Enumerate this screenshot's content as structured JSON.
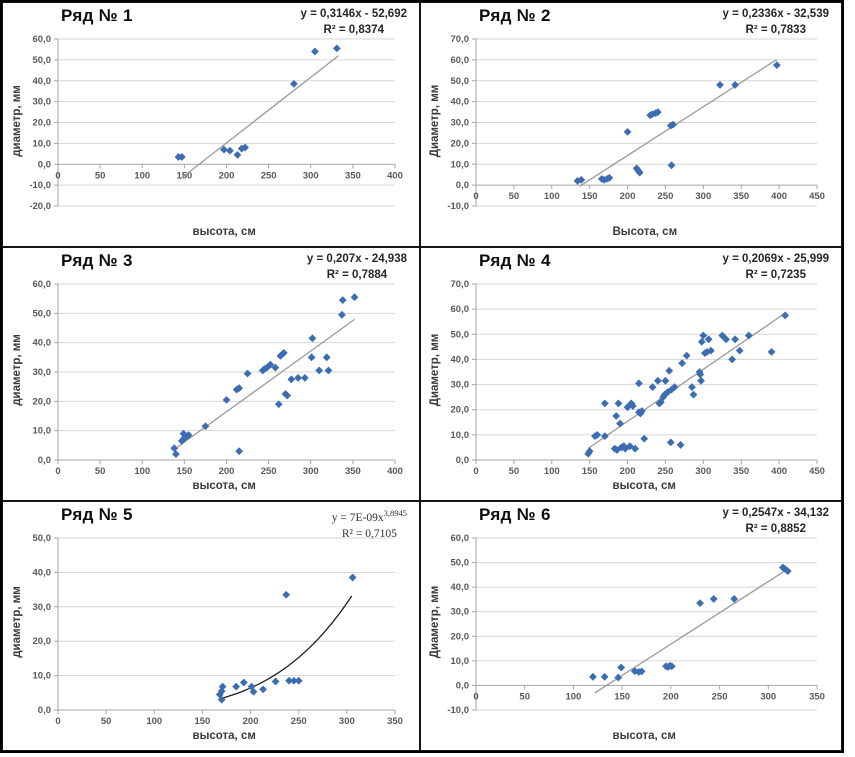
{
  "figure": {
    "marker_color": "#3c6db0",
    "trend_color_linear": "#9a9a9a",
    "trend_color_power": "#1f1f1f",
    "grid_color": "#d6d6d6",
    "axis_color": "#a6a6a6",
    "tick_color": "#595959"
  },
  "chart_data": [
    {
      "type": "scatter",
      "title": "Ряд № 1",
      "equation": "y = 0,3146x - 52,692",
      "equation_sup": "",
      "r2": "R² = 0,8374",
      "xlabel": "высота, см",
      "ylabel": "диаметр, мм",
      "x_max": 400,
      "x_ticks": [
        0,
        50,
        100,
        150,
        200,
        250,
        300,
        350,
        400
      ],
      "y_tick_labels": [
        "60,0",
        "50,0",
        "40,0",
        "30,0",
        "20,0",
        "10,0",
        "0,0",
        "-10,0",
        "-20,0"
      ],
      "y_min": -20,
      "y_max": 60,
      "grid": "horizontal",
      "legend": "none",
      "points": [
        [
          143,
          3.5
        ],
        [
          147,
          3.5
        ],
        [
          197,
          7
        ],
        [
          204,
          6.5
        ],
        [
          213,
          4.5
        ],
        [
          218,
          7.5
        ],
        [
          222,
          8
        ],
        [
          280,
          38.5
        ],
        [
          305,
          54
        ],
        [
          331,
          55.5
        ]
      ],
      "trend": {
        "type": "linear",
        "a": 0.3146,
        "b": -52.692,
        "x1": 145,
        "x2": 333
      }
    },
    {
      "type": "scatter",
      "title": "Ряд № 2",
      "equation": "y = 0,2336x - 32,539",
      "equation_sup": "",
      "r2": "R² = 0,7833",
      "xlabel": "Высота, см",
      "ylabel": "Диаметр, мм",
      "x_max": 450,
      "x_ticks": [
        0,
        50,
        100,
        150,
        200,
        250,
        300,
        350,
        400,
        450
      ],
      "y_tick_labels": [
        "70,0",
        "60,0",
        "50,0",
        "40,0",
        "30,0",
        "20,0",
        "10,0",
        "0,0",
        "-10,0"
      ],
      "y_min": -10,
      "y_max": 70,
      "grid": "horizontal",
      "legend": "none",
      "points": [
        [
          134,
          2
        ],
        [
          139,
          2.5
        ],
        [
          166,
          3
        ],
        [
          169,
          2.5
        ],
        [
          173,
          3
        ],
        [
          176,
          3.5
        ],
        [
          200,
          25.5
        ],
        [
          212,
          8
        ],
        [
          214,
          7
        ],
        [
          216,
          6
        ],
        [
          230,
          33.5
        ],
        [
          233,
          34
        ],
        [
          237,
          34.5
        ],
        [
          240,
          35
        ],
        [
          257,
          28.5
        ],
        [
          260,
          29
        ],
        [
          258,
          9.5
        ],
        [
          322,
          48
        ],
        [
          342,
          48
        ],
        [
          397,
          57.5
        ]
      ],
      "trend": {
        "type": "linear",
        "a": 0.2336,
        "b": -32.539,
        "x1": 137,
        "x2": 397
      }
    },
    {
      "type": "scatter",
      "title": "Ряд № 3",
      "equation": "y = 0,207x - 24,938",
      "equation_sup": "",
      "r2": "R² = 0,7884",
      "xlabel": "высота, см",
      "ylabel": "диаметр, мм",
      "x_max": 400,
      "x_ticks": [
        0,
        50,
        100,
        150,
        200,
        250,
        300,
        350,
        400
      ],
      "y_tick_labels": [
        "60,0",
        "50,0",
        "40,0",
        "30,0",
        "20,0",
        "10,0",
        "0,0"
      ],
      "y_min": 0,
      "y_max": 60,
      "grid": "horizontal",
      "legend": "none",
      "points": [
        [
          138,
          4
        ],
        [
          140,
          2
        ],
        [
          147,
          6.5
        ],
        [
          149,
          9
        ],
        [
          150,
          7.5
        ],
        [
          153,
          8
        ],
        [
          155,
          8.5
        ],
        [
          175,
          11.5
        ],
        [
          200,
          20.5
        ],
        [
          212,
          24
        ],
        [
          215,
          24.5
        ],
        [
          215,
          3
        ],
        [
          225,
          29.5
        ],
        [
          243,
          30.5
        ],
        [
          245,
          31
        ],
        [
          248,
          31.5
        ],
        [
          252,
          32.5
        ],
        [
          258,
          31.5
        ],
        [
          262,
          19
        ],
        [
          264,
          35.5
        ],
        [
          266,
          36
        ],
        [
          268,
          36.5
        ],
        [
          270,
          22.5
        ],
        [
          272,
          22
        ],
        [
          277,
          27.5
        ],
        [
          285,
          28
        ],
        [
          293,
          28
        ],
        [
          301,
          35
        ],
        [
          302,
          41.5
        ],
        [
          310,
          30.5
        ],
        [
          319,
          35
        ],
        [
          321,
          30.5
        ],
        [
          337,
          49.5
        ],
        [
          338,
          54.5
        ],
        [
          352,
          55.5
        ]
      ],
      "trend": {
        "type": "linear",
        "a": 0.207,
        "b": -24.938,
        "x1": 138,
        "x2": 352
      }
    },
    {
      "type": "scatter",
      "title": "Ряд № 4",
      "equation": "y = 0,2069x - 25,999",
      "equation_sup": "",
      "r2": "R² = 0,7235",
      "xlabel": "высота, см",
      "ylabel": "Диаметр, мм",
      "x_max": 450,
      "x_ticks": [
        0,
        50,
        100,
        150,
        200,
        250,
        300,
        350,
        400,
        450
      ],
      "y_tick_labels": [
        "70,0",
        "60,0",
        "50,0",
        "40,0",
        "30,0",
        "20,0",
        "10,0",
        "0,0"
      ],
      "y_min": 0,
      "y_max": 70,
      "grid": "horizontal",
      "legend": "none",
      "points": [
        [
          148,
          2.5
        ],
        [
          150,
          3.5
        ],
        [
          157,
          9.5
        ],
        [
          160,
          10
        ],
        [
          170,
          22.5
        ],
        [
          170,
          9.5
        ],
        [
          183,
          4.5
        ],
        [
          185,
          17.5
        ],
        [
          186,
          4
        ],
        [
          188,
          22.5
        ],
        [
          190,
          14.5
        ],
        [
          192,
          5
        ],
        [
          195,
          5.5
        ],
        [
          197,
          4.5
        ],
        [
          200,
          21
        ],
        [
          203,
          5.5
        ],
        [
          205,
          22.5
        ],
        [
          207,
          21.5
        ],
        [
          210,
          4.5
        ],
        [
          215,
          30.5
        ],
        [
          215,
          19
        ],
        [
          217,
          18.5
        ],
        [
          219,
          19.5
        ],
        [
          222,
          8.5
        ],
        [
          233,
          29
        ],
        [
          240,
          31.5
        ],
        [
          242,
          22.5
        ],
        [
          244,
          23
        ],
        [
          247,
          25
        ],
        [
          249,
          26
        ],
        [
          250,
          31.5
        ],
        [
          253,
          27
        ],
        [
          255,
          35.5
        ],
        [
          257,
          7
        ],
        [
          258,
          28
        ],
        [
          262,
          29
        ],
        [
          270,
          6
        ],
        [
          272,
          38.5
        ],
        [
          278,
          41.5
        ],
        [
          285,
          29
        ],
        [
          287,
          26
        ],
        [
          295,
          35
        ],
        [
          296,
          34
        ],
        [
          297,
          31.5
        ],
        [
          298,
          47
        ],
        [
          300,
          49.5
        ],
        [
          302,
          42.5
        ],
        [
          305,
          43
        ],
        [
          307,
          48
        ],
        [
          310,
          43.5
        ],
        [
          325,
          49.5
        ],
        [
          330,
          48
        ],
        [
          338,
          40
        ],
        [
          342,
          48
        ],
        [
          348,
          43.5
        ],
        [
          360,
          49.5
        ],
        [
          390,
          43
        ],
        [
          408,
          57.5
        ]
      ],
      "trend": {
        "type": "linear",
        "a": 0.2069,
        "b": -25.999,
        "x1": 148,
        "x2": 408
      }
    },
    {
      "type": "scatter",
      "title": "Ряд № 5",
      "equation": "y = 7E-09x",
      "equation_sup": "3,8945",
      "r2": "R² = 0,7105",
      "xlabel": "высота, см",
      "ylabel": "диаметр, мм",
      "x_max": 350,
      "x_ticks": [
        0,
        50,
        100,
        150,
        200,
        250,
        300,
        350
      ],
      "y_tick_labels": [
        "50,0",
        "40,0",
        "30,0",
        "20,0",
        "10,0",
        "0,0"
      ],
      "y_min": 0,
      "y_max": 50,
      "grid": "horizontal",
      "legend": "none",
      "points": [
        [
          168,
          4.5
        ],
        [
          170,
          3
        ],
        [
          170,
          5.5
        ],
        [
          171,
          6.8
        ],
        [
          185,
          6.8
        ],
        [
          193,
          8
        ],
        [
          201,
          6.8
        ],
        [
          203,
          5.3
        ],
        [
          213,
          6
        ],
        [
          226,
          8.3
        ],
        [
          240,
          8.5
        ],
        [
          245,
          8.5
        ],
        [
          250,
          8.5
        ],
        [
          237,
          33.5
        ],
        [
          306,
          38.5
        ]
      ],
      "trend": {
        "type": "power",
        "a": 7e-09,
        "b": 3.8945,
        "x1": 170,
        "x2": 305
      }
    },
    {
      "type": "scatter",
      "title": "Ряд № 6",
      "equation": "y = 0,2547x - 34,132",
      "equation_sup": "",
      "r2": "R² = 0,8852",
      "xlabel": "высота, см",
      "ylabel": "Диаметр, мм",
      "x_max": 350,
      "x_ticks": [
        0,
        50,
        100,
        150,
        200,
        250,
        300,
        350
      ],
      "y_tick_labels": [
        "60,0",
        "50,0",
        "40,0",
        "30,0",
        "20,0",
        "10,0",
        "0,0",
        "-10,0"
      ],
      "y_min": -10,
      "y_max": 60,
      "grid": "horizontal",
      "legend": "none",
      "points": [
        [
          120,
          3.5
        ],
        [
          132,
          3.5
        ],
        [
          146,
          3.2
        ],
        [
          149,
          7.3
        ],
        [
          163,
          5.8
        ],
        [
          167,
          5.5
        ],
        [
          170,
          5.7
        ],
        [
          195,
          7.8
        ],
        [
          197,
          7.5
        ],
        [
          199,
          8
        ],
        [
          201,
          7.8
        ],
        [
          230,
          33.5
        ],
        [
          244,
          35.2
        ],
        [
          265,
          35.2
        ],
        [
          315,
          48
        ],
        [
          317,
          47.5
        ],
        [
          320,
          46.5
        ]
      ],
      "trend": {
        "type": "linear",
        "a": 0.2547,
        "b": -34.132,
        "x1": 122,
        "x2": 320
      }
    }
  ]
}
